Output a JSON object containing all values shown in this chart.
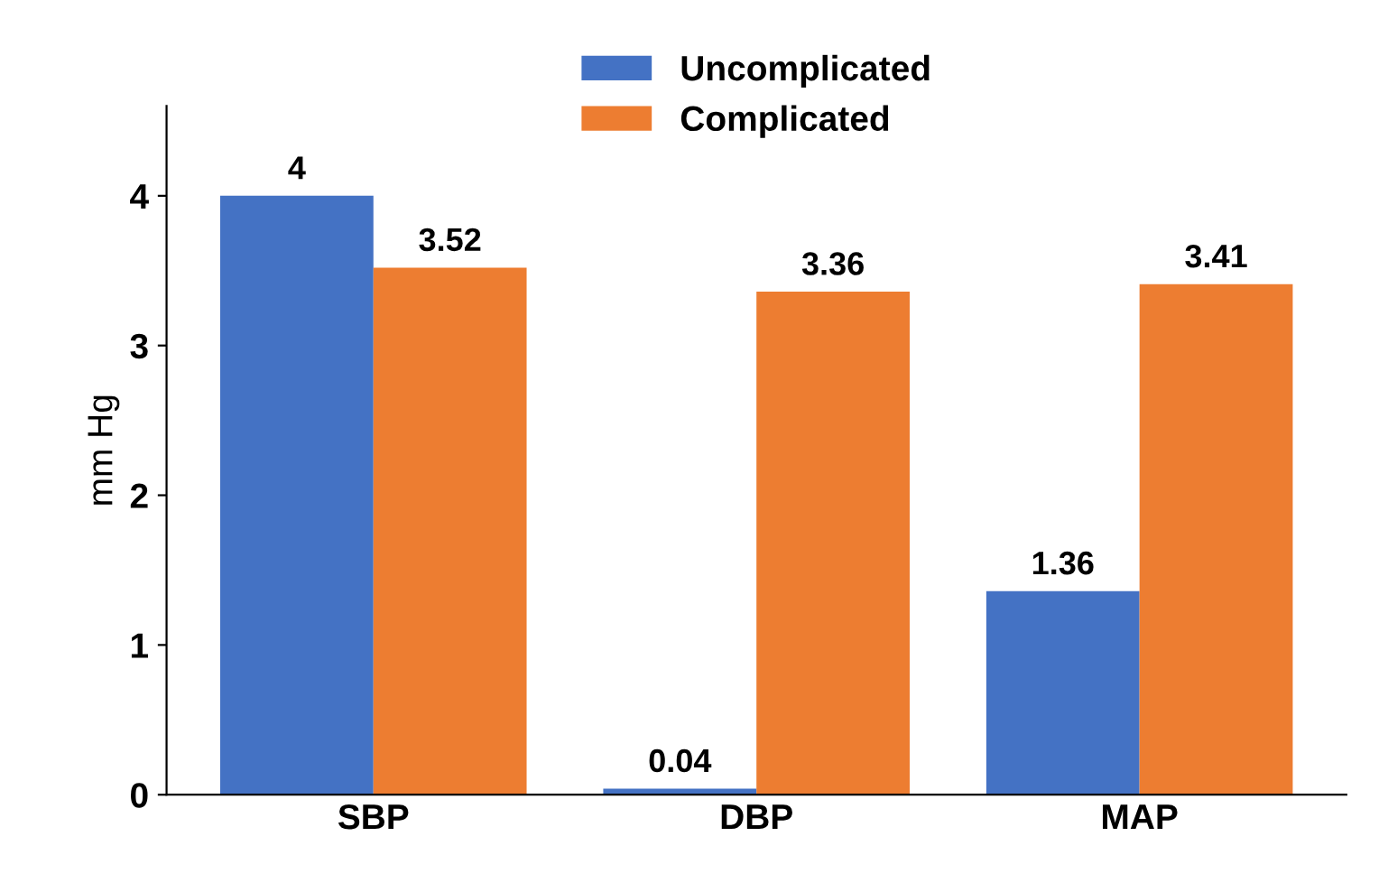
{
  "chart_data": {
    "type": "bar",
    "ylabel": "mm Hg",
    "categories": [
      "SBP",
      "DBP",
      "MAP"
    ],
    "series": [
      {
        "name": "Uncomplicated",
        "color": "#4472c4",
        "values": [
          4,
          0.04,
          1.36
        ]
      },
      {
        "name": "Complicated",
        "color": "#ed7d31",
        "values": [
          3.52,
          3.36,
          3.41
        ]
      }
    ],
    "ylim": [
      0,
      4.6
    ],
    "yticks": [
      0,
      1,
      2,
      3,
      4
    ],
    "grid": false,
    "legend": "top",
    "data_labels": true
  }
}
